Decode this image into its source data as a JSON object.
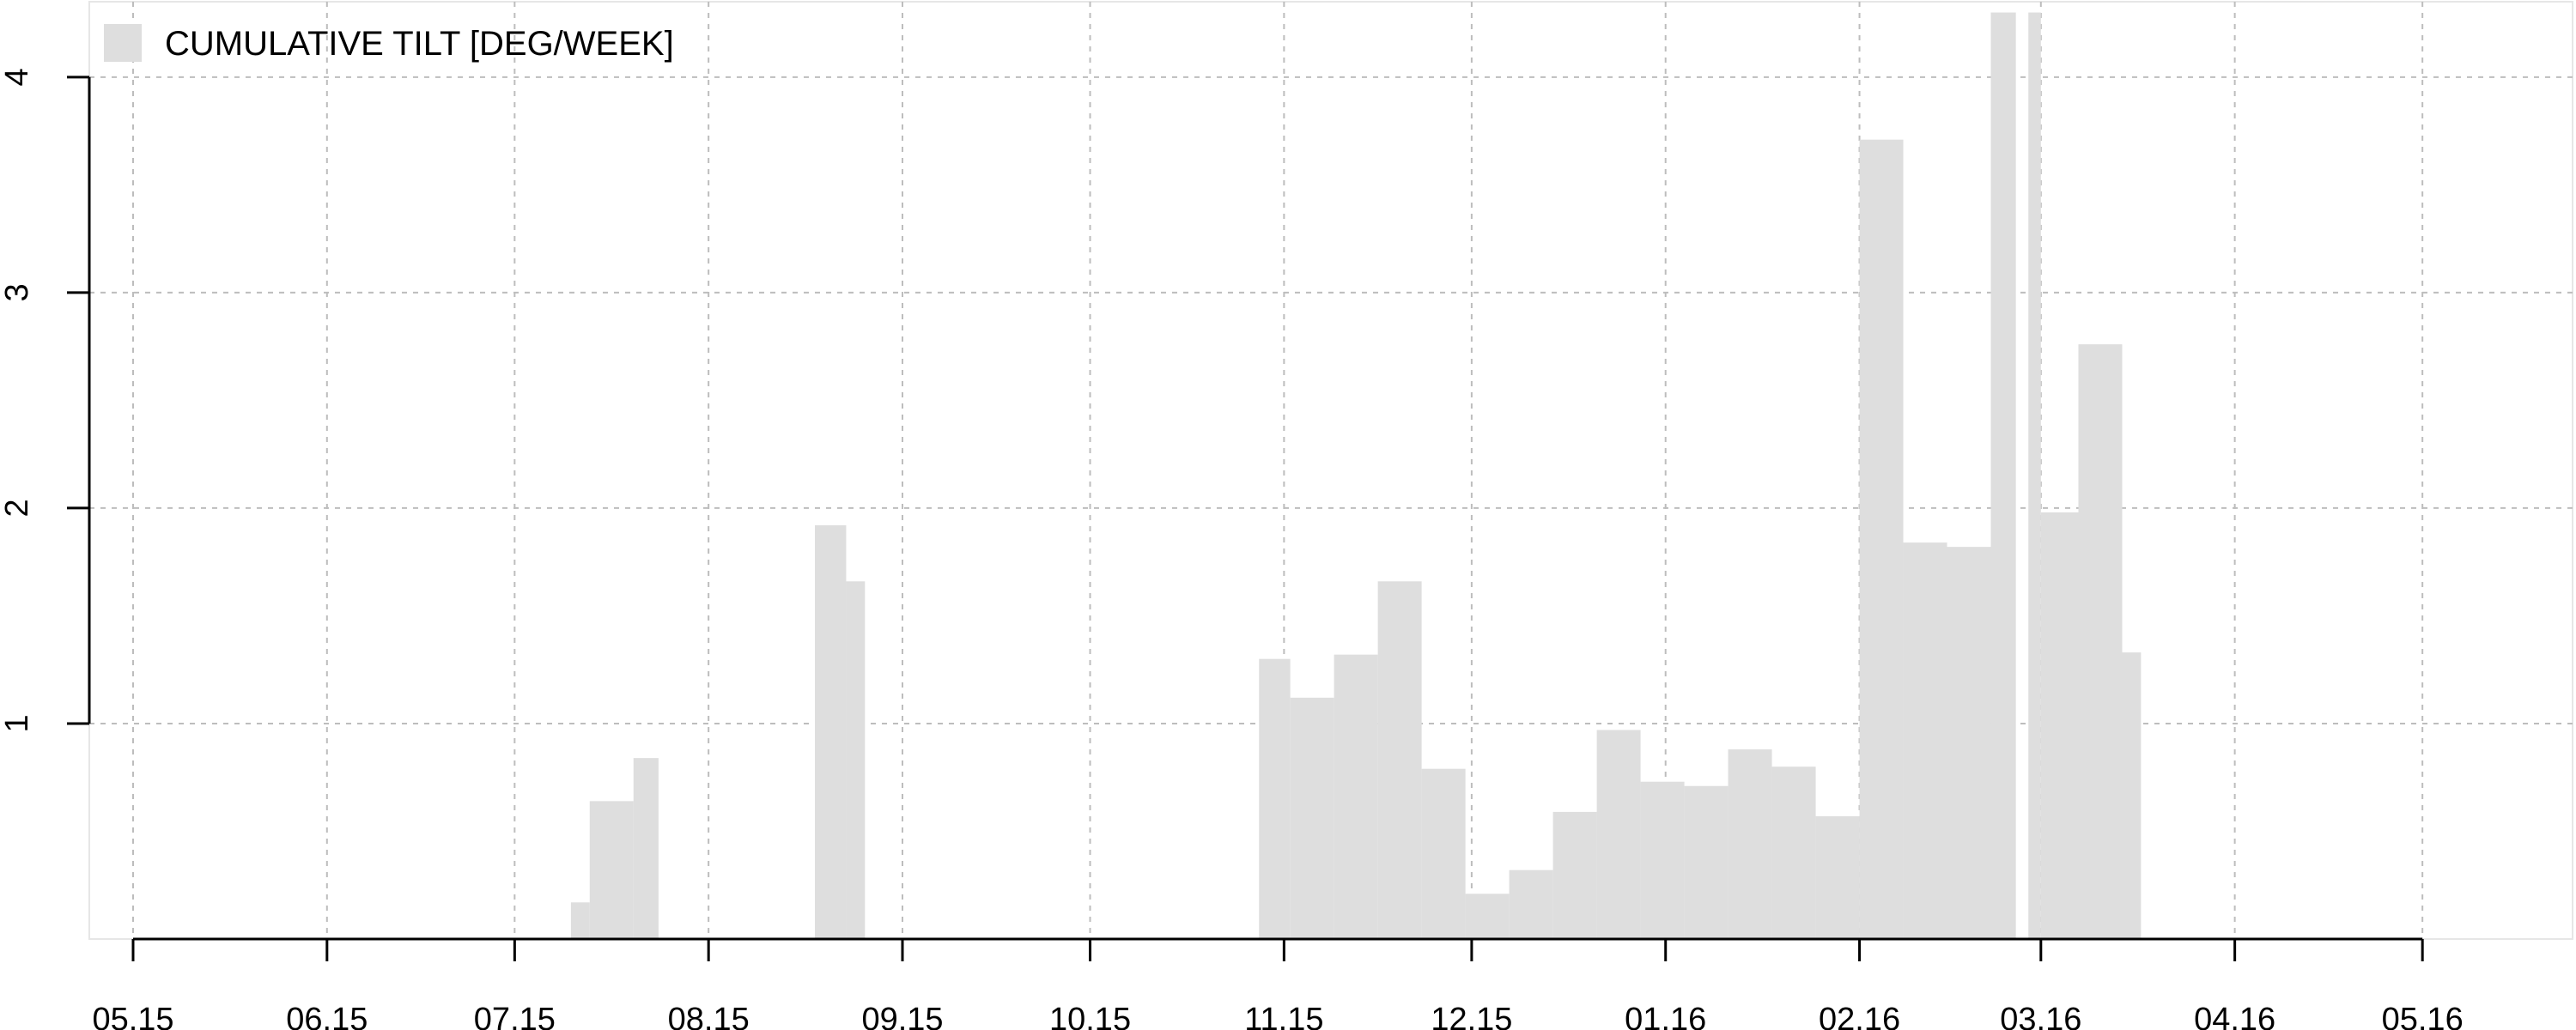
{
  "chart_data": {
    "type": "bar",
    "legend": {
      "label": "CUMULATIVE TILT [DEG/WEEK]",
      "position": "top-left",
      "color": "#dedede"
    },
    "bar_color": "#dedede",
    "grid": true,
    "xlabel": "",
    "ylabel": "",
    "x_is_date": true,
    "xlim": [
      "2015-04-24",
      "2016-05-25"
    ],
    "ylim": [
      0,
      4.35
    ],
    "x_ticks": [
      {
        "date": "2015-05-01",
        "label": "05.15"
      },
      {
        "date": "2015-06-01",
        "label": "06.15"
      },
      {
        "date": "2015-07-01",
        "label": "07.15"
      },
      {
        "date": "2015-08-01",
        "label": "08.15"
      },
      {
        "date": "2015-09-01",
        "label": "09.15"
      },
      {
        "date": "2015-10-01",
        "label": "10.15"
      },
      {
        "date": "2015-11-01",
        "label": "11.15"
      },
      {
        "date": "2015-12-01",
        "label": "12.15"
      },
      {
        "date": "2016-01-01",
        "label": "01.16"
      },
      {
        "date": "2016-02-01",
        "label": "02.16"
      },
      {
        "date": "2016-03-01",
        "label": "03.16"
      },
      {
        "date": "2016-04-01",
        "label": "04.16"
      },
      {
        "date": "2016-05-01",
        "label": "05.16"
      }
    ],
    "y_ticks": [
      {
        "value": 1,
        "label": "1"
      },
      {
        "value": 2,
        "label": "2"
      },
      {
        "value": 3,
        "label": "3"
      },
      {
        "value": 4,
        "label": "4"
      }
    ],
    "bars": [
      {
        "start": "2015-07-10",
        "end": "2015-07-13",
        "value": 0.17
      },
      {
        "start": "2015-07-13",
        "end": "2015-07-20",
        "value": 0.64
      },
      {
        "start": "2015-07-20",
        "end": "2015-07-24",
        "value": 0.84
      },
      {
        "start": "2015-08-18",
        "end": "2015-08-23",
        "value": 1.92
      },
      {
        "start": "2015-08-23",
        "end": "2015-08-26",
        "value": 1.66
      },
      {
        "start": "2015-10-28",
        "end": "2015-11-02",
        "value": 1.3
      },
      {
        "start": "2015-11-02",
        "end": "2015-11-09",
        "value": 1.12
      },
      {
        "start": "2015-11-09",
        "end": "2015-11-16",
        "value": 1.32
      },
      {
        "start": "2015-11-16",
        "end": "2015-11-23",
        "value": 1.66
      },
      {
        "start": "2015-11-23",
        "end": "2015-11-30",
        "value": 0.79
      },
      {
        "start": "2015-11-30",
        "end": "2015-12-07",
        "value": 0.21
      },
      {
        "start": "2015-12-07",
        "end": "2015-12-14",
        "value": 0.32
      },
      {
        "start": "2015-12-14",
        "end": "2015-12-21",
        "value": 0.59
      },
      {
        "start": "2015-12-21",
        "end": "2015-12-28",
        "value": 0.97
      },
      {
        "start": "2015-12-28",
        "end": "2016-01-04",
        "value": 0.73
      },
      {
        "start": "2016-01-04",
        "end": "2016-01-11",
        "value": 0.71
      },
      {
        "start": "2016-01-11",
        "end": "2016-01-18",
        "value": 0.88
      },
      {
        "start": "2016-01-18",
        "end": "2016-01-25",
        "value": 0.8
      },
      {
        "start": "2016-01-25",
        "end": "2016-02-01",
        "value": 0.57
      },
      {
        "start": "2016-02-01",
        "end": "2016-02-08",
        "value": 3.71
      },
      {
        "start": "2016-02-08",
        "end": "2016-02-15",
        "value": 1.84
      },
      {
        "start": "2016-02-15",
        "end": "2016-02-22",
        "value": 1.82
      },
      {
        "start": "2016-02-22",
        "end": "2016-02-26",
        "value": 4.3
      },
      {
        "start": "2016-02-28",
        "end": "2016-03-01",
        "value": 4.3
      },
      {
        "start": "2016-03-01",
        "end": "2016-03-07",
        "value": 1.98
      },
      {
        "start": "2016-03-07",
        "end": "2016-03-14",
        "value": 2.76
      },
      {
        "start": "2016-03-14",
        "end": "2016-03-17",
        "value": 1.33
      }
    ]
  }
}
